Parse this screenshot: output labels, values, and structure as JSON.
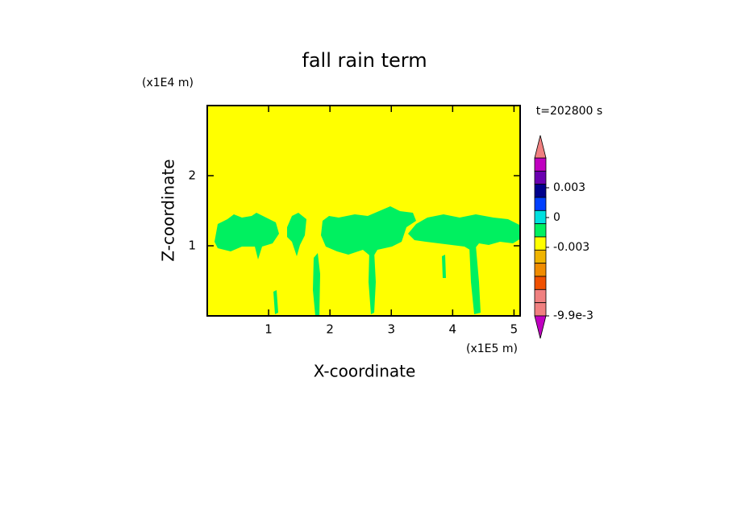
{
  "chart_data": {
    "type": "contour",
    "title": "fall rain term",
    "x_label": "X-coordinate",
    "y_label": "Z-coordinate",
    "x_unit": "(x1E5 m)",
    "y_unit": "(x1E4 m)",
    "annotation": "t=202800 s",
    "xlim": [
      0,
      5.1
    ],
    "xticks": [
      1,
      2,
      3,
      4,
      5
    ],
    "ylim": [
      0,
      3
    ],
    "yticks": [
      1,
      2
    ],
    "field_color": "#ffff00",
    "rain_color": "#00f060",
    "colorbar": {
      "clim": [
        -0.0099,
        0.006
      ],
      "ticks": [
        0.003,
        0,
        -0.003,
        {
          "value": -0.0099,
          "label": "-9.9e-3"
        }
      ],
      "colors": [
        "#f08080",
        "#f08080",
        "#f05000",
        "#f08c00",
        "#f0b400",
        "#ffff00",
        "#00f060",
        "#00e0e0",
        "#0040ff",
        "#00008c",
        "#6a00b0",
        "#c000c0"
      ],
      "over_color": "#f08080",
      "under_color": "#c000c0"
    }
  }
}
